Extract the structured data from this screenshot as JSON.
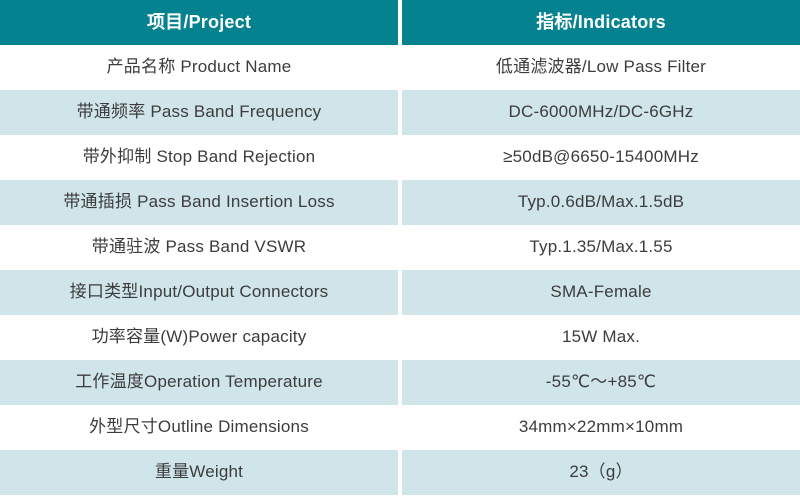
{
  "table": {
    "header": {
      "project_label": "项目/Project",
      "indicators_label": "指标/Indicators"
    },
    "rows": [
      {
        "label": "产品名称 Product Name",
        "value": "低通滤波器/Low Pass Filter"
      },
      {
        "label": "带通频率 Pass Band Frequency",
        "value": "DC-6000MHz/DC-6GHz"
      },
      {
        "label": "带外抑制 Stop Band Rejection",
        "value": "≥50dB@6650-15400MHz"
      },
      {
        "label": "带通插损 Pass Band Insertion Loss",
        "value": "Typ.0.6dB/Max.1.5dB"
      },
      {
        "label": "带通驻波 Pass Band VSWR",
        "value": "Typ.1.35/Max.1.55"
      },
      {
        "label": "接口类型Input/Output Connectors",
        "value": "SMA-Female"
      },
      {
        "label": "功率容量(W)Power capacity",
        "value": "15W Max."
      },
      {
        "label": "工作温度Operation Temperature",
        "value": "-55℃～+85℃"
      },
      {
        "label": "外型尺寸Outline Dimensions",
        "value": "34mm×22mm×10mm"
      },
      {
        "label": "重量Weight",
        "value": "23（g）"
      }
    ]
  },
  "colors": {
    "header-bg": "#05828f",
    "header-text": "#ffffff",
    "row-alt-bg": "#cfe5ea",
    "body-text": "#3c3c3c"
  }
}
